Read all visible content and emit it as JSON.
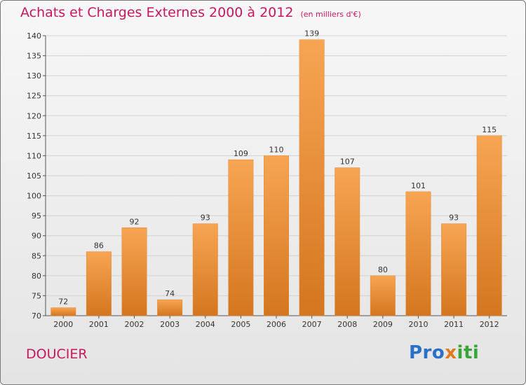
{
  "header": {
    "title": "Achats et Charges Externes 2000 à 2012",
    "unit": "(en milliers d'€)"
  },
  "footer": {
    "town": "DOUCIER",
    "logo_part1": "Pro",
    "logo_part2": "x",
    "logo_part3": "iti"
  },
  "colors": {
    "title": "#c8175f",
    "bar_light": "#f7a553",
    "bar_dark": "#d4761f"
  },
  "chart_data": {
    "type": "bar",
    "title": "Achats et Charges Externes 2000 à 2012",
    "subtitle": "(en milliers d'€)",
    "categories": [
      "2000",
      "2001",
      "2002",
      "2003",
      "2004",
      "2005",
      "2006",
      "2007",
      "2008",
      "2009",
      "2010",
      "2011",
      "2012"
    ],
    "values": [
      72,
      86,
      92,
      74,
      93,
      109,
      110,
      139,
      107,
      80,
      101,
      93,
      115
    ],
    "ylim": [
      70,
      140
    ],
    "yticks": [
      70,
      75,
      80,
      85,
      90,
      95,
      100,
      105,
      110,
      115,
      120,
      125,
      130,
      135,
      140
    ],
    "grid": true,
    "xlabel": "",
    "ylabel": ""
  }
}
